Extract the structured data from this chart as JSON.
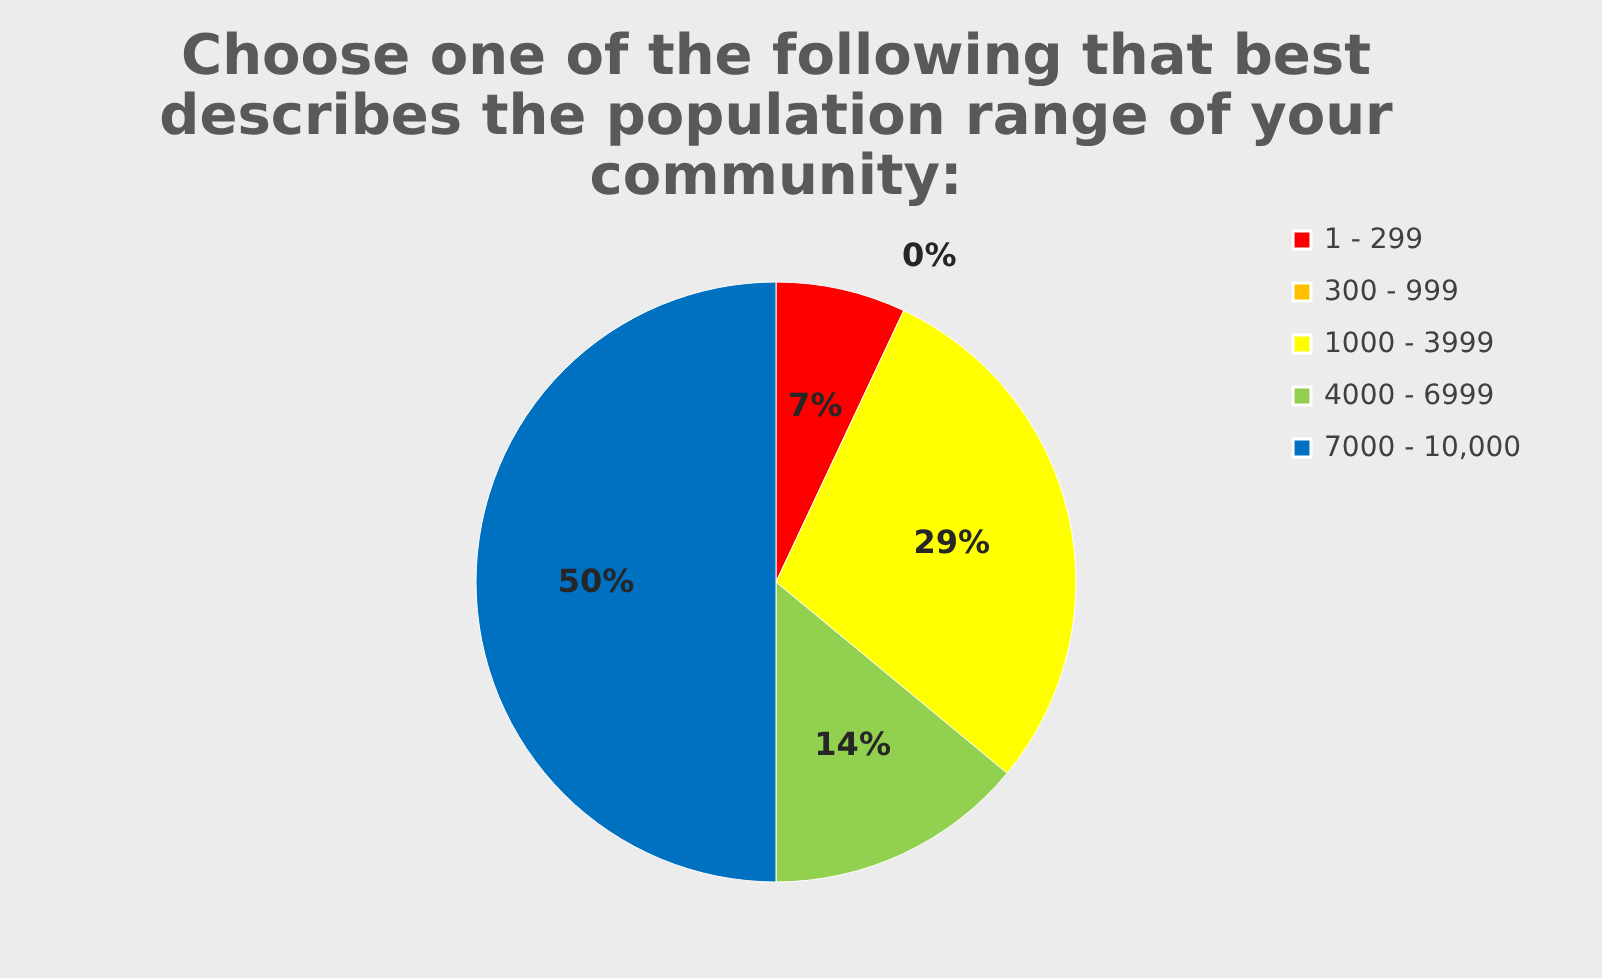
{
  "chart_data": {
    "type": "pie",
    "title": "Choose one of the following that best describes the population range of your community:",
    "categories": [
      "1 - 299",
      "300 - 999",
      "1000 - 3999",
      "4000 - 6999",
      "7000 - 10,000"
    ],
    "values": [
      7,
      0,
      29,
      14,
      50
    ],
    "value_labels": [
      "7%",
      "0%",
      "29%",
      "14%",
      "50%"
    ],
    "colors": [
      "#ff0000",
      "#ffc000",
      "#ffff00",
      "#92d050",
      "#0070c0"
    ],
    "legend": "right"
  }
}
